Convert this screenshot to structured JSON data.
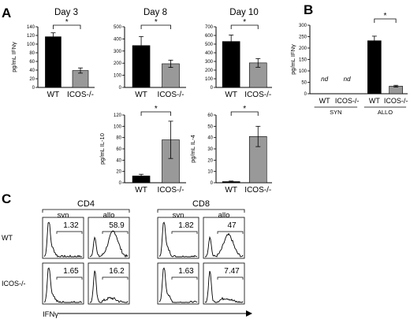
{
  "panel_letters": [
    "A",
    "B",
    "C"
  ],
  "chart_data": [
    {
      "id": "a-day3",
      "type": "bar",
      "title": "Day 3",
      "ylabel": "pg/mL IFNγ",
      "categories": [
        "WT",
        "ICOS-/-"
      ],
      "values": [
        117,
        39
      ],
      "errors": [
        9,
        6
      ],
      "ylim": [
        0,
        140
      ],
      "yticks": [
        "0",
        "20",
        "40",
        "60",
        "80",
        "100",
        "120",
        "140"
      ],
      "bar_colors": [
        "#000000",
        "#999999"
      ],
      "significance": "*"
    },
    {
      "id": "a-day8",
      "type": "bar",
      "title": "Day 8",
      "ylabel": "",
      "categories": [
        "WT",
        "ICOS-/-"
      ],
      "values": [
        345,
        195
      ],
      "errors": [
        75,
        30
      ],
      "ylim": [
        0,
        500
      ],
      "yticks": [
        "0",
        "100",
        "200",
        "300",
        "400",
        "500"
      ],
      "bar_colors": [
        "#000000",
        "#999999"
      ],
      "significance": "*"
    },
    {
      "id": "a-day10",
      "type": "bar",
      "title": "Day 10",
      "ylabel": "",
      "categories": [
        "WT",
        "ICOS-/-"
      ],
      "values": [
        530,
        283
      ],
      "errors": [
        75,
        50
      ],
      "ylim": [
        0,
        700
      ],
      "yticks": [
        "0",
        "100",
        "200",
        "300",
        "400",
        "500",
        "600",
        "700"
      ],
      "bar_colors": [
        "#000000",
        "#999999"
      ],
      "significance": "*"
    },
    {
      "id": "a-il10",
      "type": "bar",
      "title": "",
      "ylabel": "pg/mL IL-10",
      "categories": [
        "WT",
        "ICOS-/-"
      ],
      "values": [
        12,
        76
      ],
      "errors": [
        3,
        33
      ],
      "ylim": [
        0,
        120
      ],
      "yticks": [
        "0",
        "20",
        "40",
        "60",
        "80",
        "100",
        "120"
      ],
      "bar_colors": [
        "#000000",
        "#999999"
      ],
      "significance": "*"
    },
    {
      "id": "a-il4",
      "type": "bar",
      "title": "",
      "ylabel": "pg/mL IL-4",
      "categories": [
        "WT",
        "ICOS-/-"
      ],
      "values": [
        1,
        41
      ],
      "errors": [
        0.5,
        9
      ],
      "ylim": [
        0,
        60
      ],
      "yticks": [
        "0",
        "10",
        "20",
        "30",
        "40",
        "50",
        "60"
      ],
      "bar_colors": [
        "#000000",
        "#999999"
      ],
      "significance": "*"
    },
    {
      "id": "b-ifng",
      "type": "bar",
      "title": "",
      "ylabel": "pg/mL IFNγ",
      "categories": [
        "WT",
        "ICOS-/-",
        "WT",
        "ICOS-/-"
      ],
      "groups": [
        "SYN",
        "ALLO"
      ],
      "values": [
        null,
        null,
        232,
        33
      ],
      "errors": [
        0,
        0,
        20,
        4
      ],
      "annotations": [
        "nd",
        "nd",
        "",
        ""
      ],
      "ylim": [
        0,
        300
      ],
      "yticks": [
        "0",
        "50",
        "100",
        "150",
        "200",
        "250",
        "300"
      ],
      "bar_colors": [
        "#000000",
        "#999999",
        "#000000",
        "#999999"
      ],
      "significance": "*"
    },
    {
      "id": "c-flow",
      "type": "histogram",
      "column_groups": [
        "CD4",
        "CD8"
      ],
      "columns": [
        "syn",
        "allo",
        "syn",
        "allo"
      ],
      "rows": [
        "WT",
        "ICOS-/-"
      ],
      "gate_values": [
        [
          "1.32",
          "58.9",
          "1.82",
          "47"
        ],
        [
          "1.65",
          "16.2",
          "1.63",
          "7.47"
        ]
      ],
      "xlabel": "IFNγ"
    }
  ]
}
